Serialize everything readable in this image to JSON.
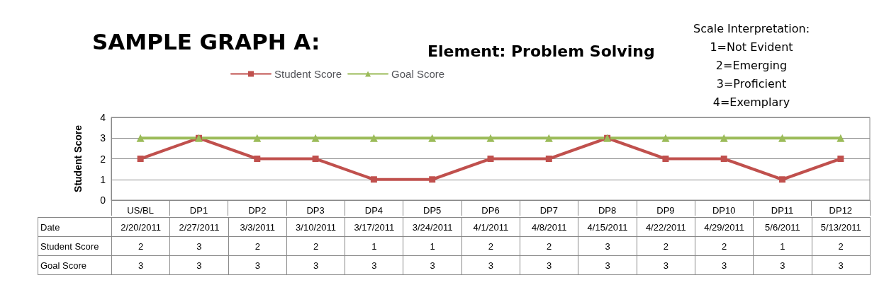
{
  "chart_data": {
    "type": "line",
    "title": "SAMPLE GRAPH A:",
    "subtitle": "Element: Problem Solving",
    "ylabel": "Student Score",
    "categories": [
      "US/BL",
      "DP1",
      "DP2",
      "DP3",
      "DP4",
      "DP5",
      "DP6",
      "DP7",
      "DP8",
      "DP9",
      "DP10",
      "DP11",
      "DP12"
    ],
    "series": [
      {
        "name": "Student Score",
        "color": "#c0504d",
        "marker": "square",
        "values": [
          2,
          3,
          2,
          2,
          1,
          1,
          2,
          2,
          3,
          2,
          2,
          1,
          2
        ]
      },
      {
        "name": "Goal Score",
        "color": "#9bbb59",
        "marker": "triangle",
        "values": [
          3,
          3,
          3,
          3,
          3,
          3,
          3,
          3,
          3,
          3,
          3,
          3,
          3
        ]
      }
    ],
    "ylim": [
      0,
      4
    ],
    "yticks": [
      0,
      1,
      2,
      3,
      4
    ],
    "grid": "y",
    "legend": "top",
    "data_labels": true,
    "annotations": [
      "Scale Interpretation:",
      "1=Not Evident",
      "2=Emerging",
      "3=Proficient",
      "4=Exemplary",
      "Date",
      "2/20/2011",
      "2/27/2011",
      "3/3/2011",
      "3/10/2011",
      "3/17/2011",
      "3/24/2011",
      "4/1/2011",
      "4/8/2011",
      "4/15/2011",
      "4/22/2011",
      "4/29/2011",
      "5/6/2011",
      "5/13/2011"
    ]
  }
}
